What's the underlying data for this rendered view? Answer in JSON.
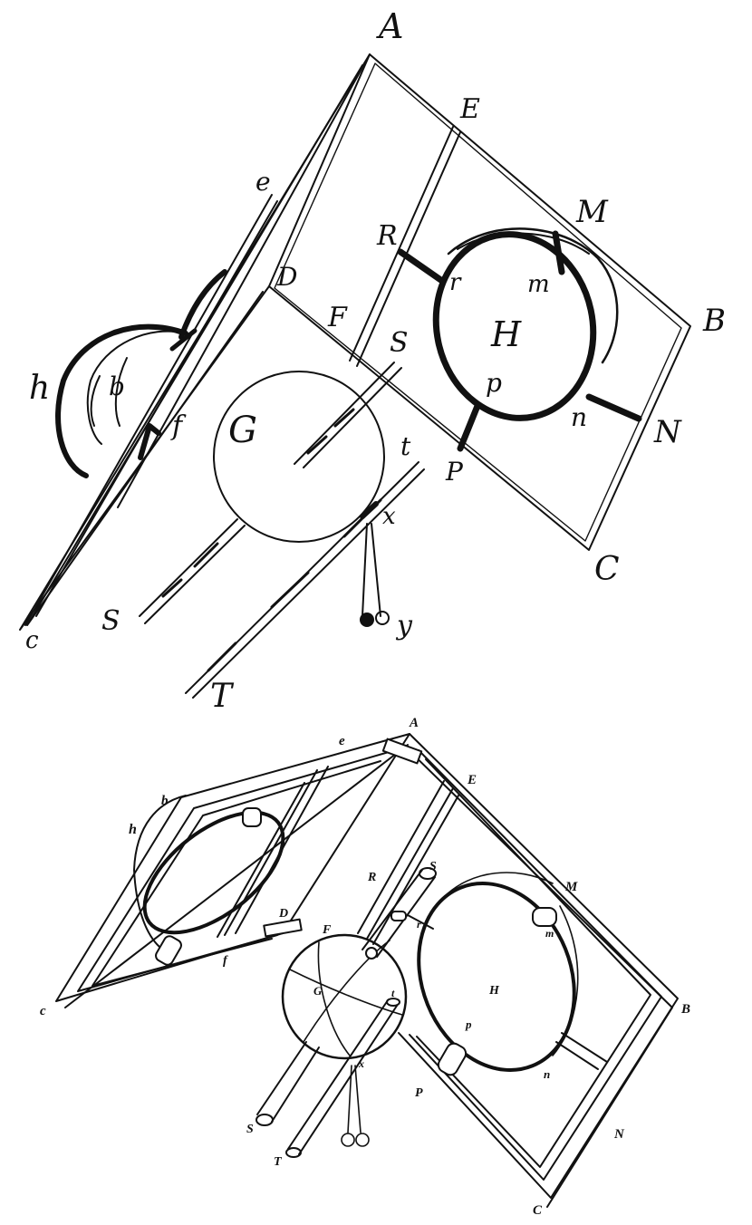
{
  "top_figure": {
    "labels": {
      "A": "A",
      "E": "E",
      "M": "M",
      "B": "B",
      "N": "N",
      "C": "C",
      "e": "e",
      "D": "D",
      "R": "R",
      "F": "F",
      "S": "S",
      "H": "H",
      "r": "r",
      "m": "m",
      "p": "p",
      "n": "n",
      "P": "P",
      "G": "G",
      "t": "t",
      "x": "x",
      "y": "y",
      "h": "h",
      "b": "b",
      "f": "f",
      "c": "c",
      "s": "S",
      "T": "T"
    }
  },
  "bottom_figure": {
    "labels": {
      "A": "A",
      "E": "E",
      "M": "M",
      "B": "B",
      "N": "N",
      "C": "C",
      "e": "e",
      "D": "D",
      "R": "R",
      "F": "F",
      "S": "S",
      "H": "H",
      "r": "r",
      "m": "m",
      "p": "p",
      "n": "n",
      "P": "P",
      "G": "G",
      "t": "t",
      "x": "x",
      "h": "h",
      "b": "b",
      "f": "f",
      "c": "c",
      "s": "S",
      "T": "T"
    }
  }
}
